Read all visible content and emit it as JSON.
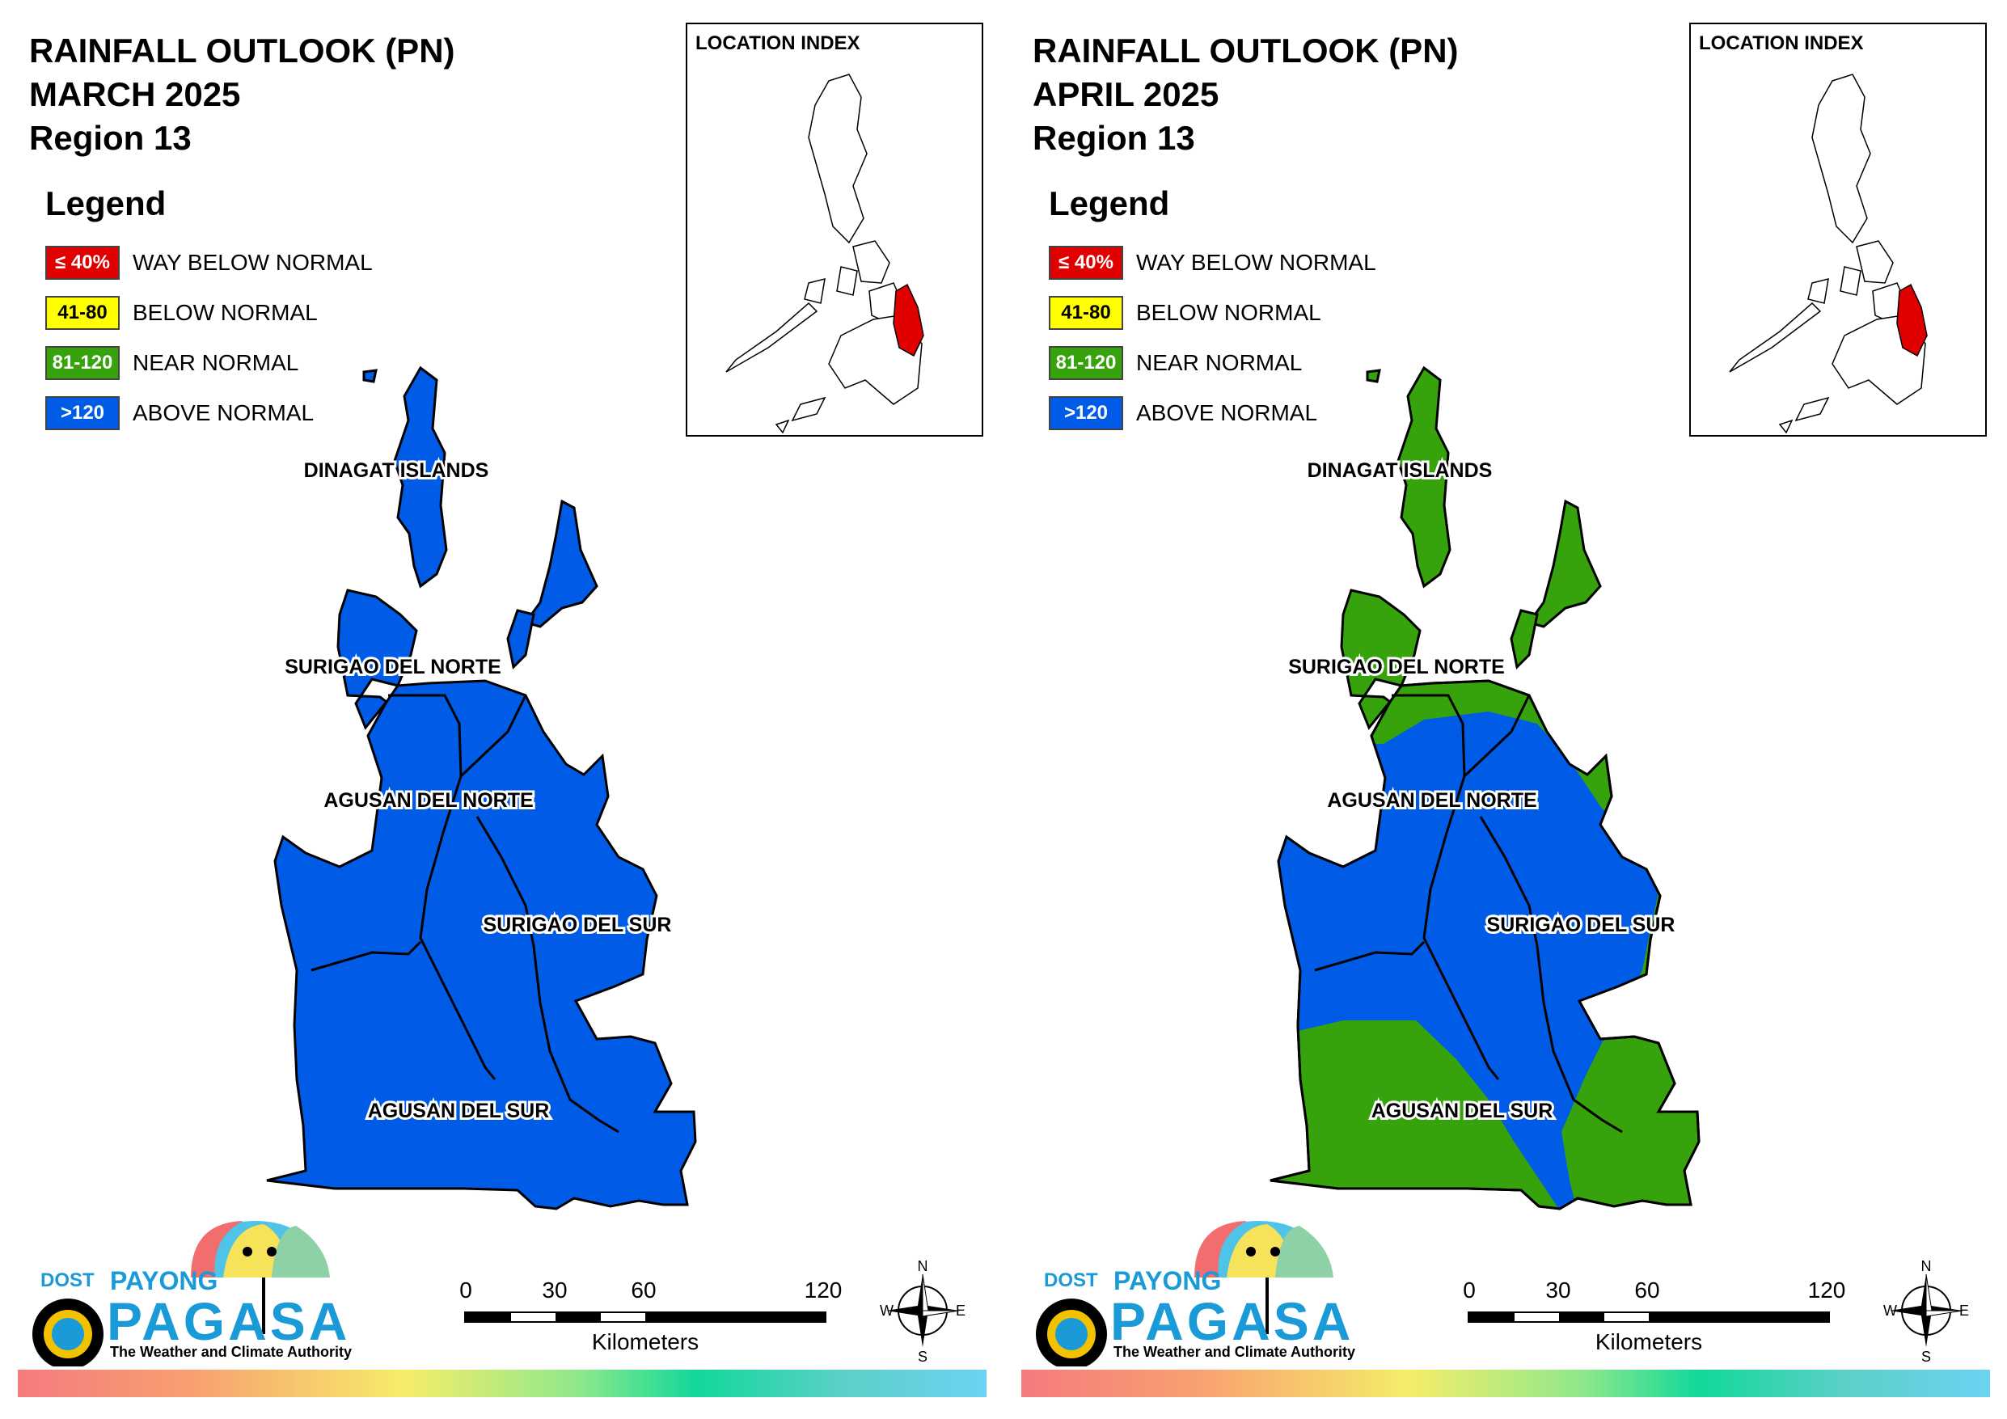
{
  "legend": {
    "title": "Legend",
    "items": [
      {
        "code": "≤ 40%",
        "label": "WAY BELOW NORMAL",
        "color": "#e00000",
        "text_color": "#ffffff"
      },
      {
        "code": "41-80",
        "label": "BELOW NORMAL",
        "color": "#ffff00",
        "text_color": "#000000"
      },
      {
        "code": "81-120",
        "label": "NEAR NORMAL",
        "color": "#36a30c",
        "text_color": "#ffffff"
      },
      {
        "code": ">120",
        "label": "ABOVE NORMAL",
        "color": "#005ce6",
        "text_color": "#ffffff"
      }
    ]
  },
  "location_index": {
    "title": "LOCATION INDEX",
    "highlight_color": "#e00000"
  },
  "provinces": [
    "DINAGAT ISLANDS",
    "SURIGAO DEL NORTE",
    "AGUSAN DEL NORTE",
    "SURIGAO DEL SUR",
    "AGUSAN DEL SUR"
  ],
  "panels": [
    {
      "title_line1": "RAINFALL OUTLOOK (PN)",
      "title_line2": "MARCH 2025",
      "title_line3": "Region 13",
      "province_category": {
        "DINAGAT ISLANDS": "ABOVE NORMAL",
        "SURIGAO DEL NORTE": "ABOVE NORMAL",
        "AGUSAN DEL NORTE": "ABOVE NORMAL",
        "SURIGAO DEL SUR": "ABOVE NORMAL",
        "AGUSAN DEL SUR": "ABOVE NORMAL"
      }
    },
    {
      "title_line1": "RAINFALL OUTLOOK (PN)",
      "title_line2": "APRIL 2025",
      "title_line3": "Region 13",
      "province_category": {
        "DINAGAT ISLANDS": "NEAR NORMAL",
        "SURIGAO DEL NORTE": "NEAR NORMAL / ABOVE NORMAL",
        "AGUSAN DEL NORTE": "ABOVE NORMAL",
        "SURIGAO DEL SUR": "ABOVE NORMAL / NEAR NORMAL",
        "AGUSAN DEL SUR": "ABOVE NORMAL / NEAR NORMAL"
      }
    }
  ],
  "scale_bar": {
    "ticks": [
      "0",
      "30",
      "60",
      "120"
    ],
    "unit": "Kilometers"
  },
  "compass": {
    "n": "N",
    "s": "S",
    "e": "E",
    "w": "W"
  },
  "logo": {
    "dost": "DOST",
    "payong": "PAYONG",
    "pagasa": "PAGASA",
    "tagline": "The Weather and Climate Authority"
  }
}
